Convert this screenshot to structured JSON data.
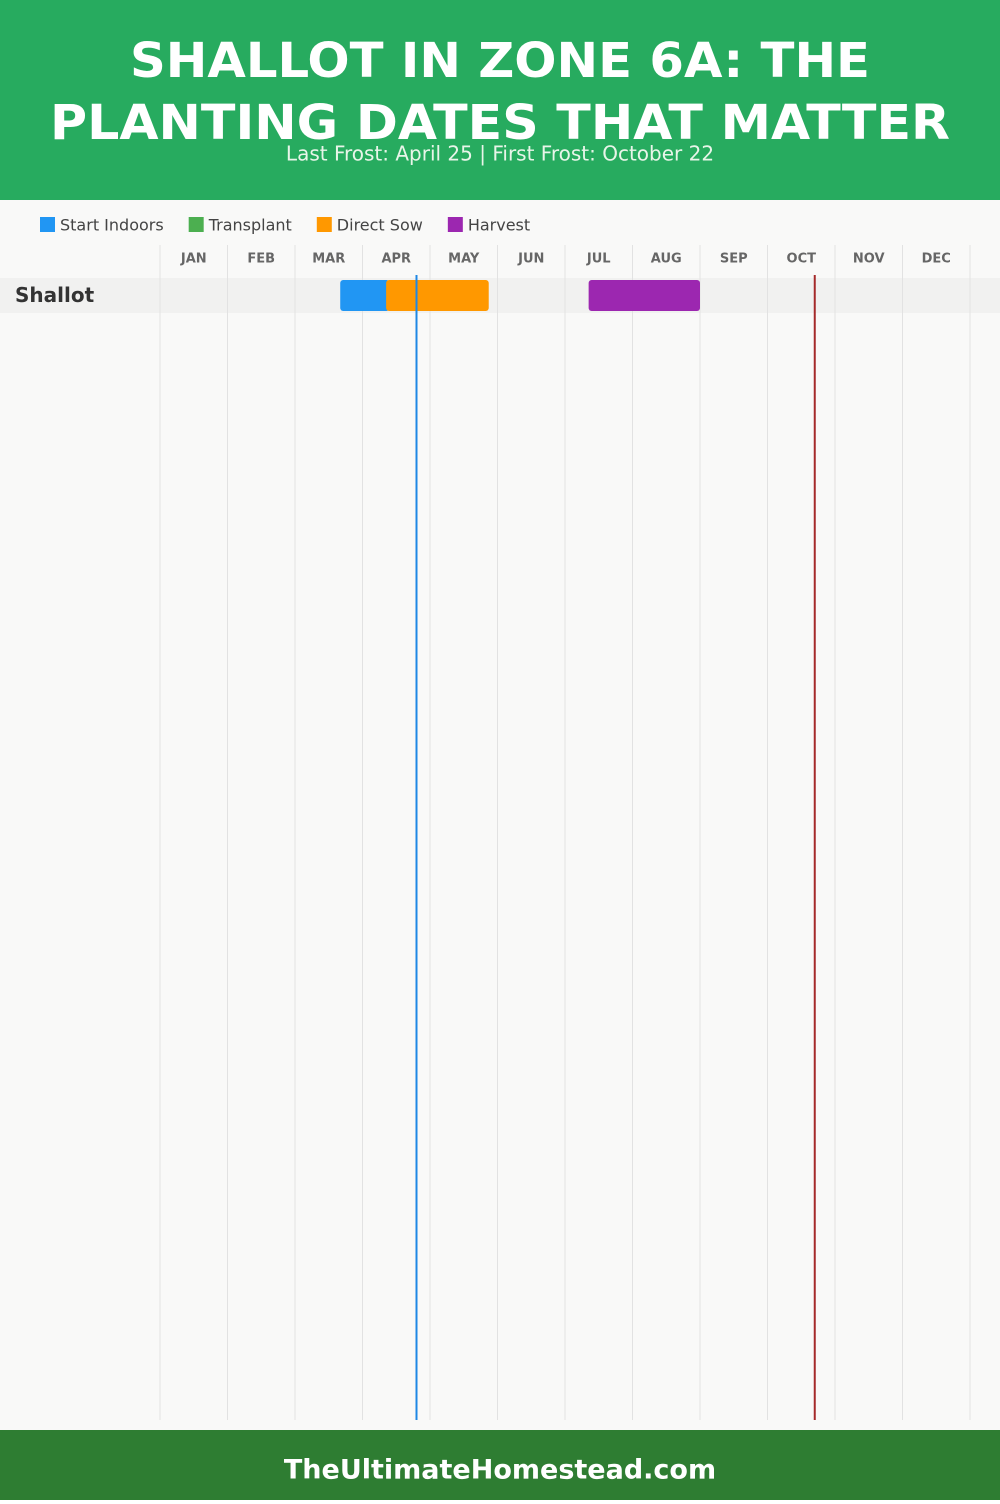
{
  "chart_data": {
    "type": "gantt",
    "title": [
      "SHALLOT IN ZONE 6A: THE",
      "PLANTING DATES THAT MATTER"
    ],
    "subtitle": "Last Frost: April 25 | First Frost: October 22",
    "categories": [
      "JAN",
      "FEB",
      "MAR",
      "APR",
      "MAY",
      "JUN",
      "JUL",
      "AUG",
      "SEP",
      "OCT",
      "NOV",
      "DEC"
    ],
    "xlim": [
      0,
      12
    ],
    "series": [
      {
        "name": "Start Indoors",
        "color": "#2196f3"
      },
      {
        "name": "Transplant",
        "color": "#4caf50"
      },
      {
        "name": "Direct Sow",
        "color": "#ff9800"
      },
      {
        "name": "Harvest",
        "color": "#9c27b0"
      }
    ],
    "rows": [
      {
        "name": "Shallot",
        "bars": [
          {
            "series": 0,
            "start": 2.67,
            "end": 3.4
          },
          {
            "series": 2,
            "start": 3.35,
            "end": 4.87
          },
          {
            "series": 3,
            "start": 6.35,
            "end": 8.0
          }
        ]
      }
    ],
    "frost_lines": [
      {
        "value": 3.8,
        "color": "#1e88e5"
      },
      {
        "value": 9.7,
        "color": "#a52a2a"
      }
    ],
    "footer": "TheUltimateHomestead.com"
  }
}
